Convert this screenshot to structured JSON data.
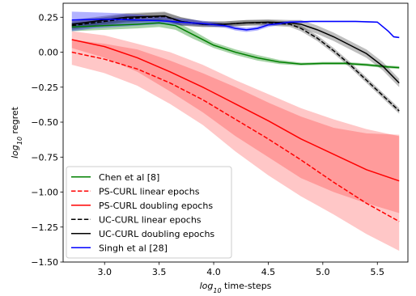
{
  "chart_data": {
    "type": "line",
    "xlabel_base": "log",
    "xlabel_sub": "10",
    "xlabel_rest": " time-steps",
    "ylabel_base": "log",
    "ylabel_sub": "10",
    "ylabel_rest": " regret",
    "xlim": [
      2.62,
      5.78
    ],
    "ylim": [
      -1.5,
      0.35
    ],
    "xticks": [
      3.0,
      3.5,
      4.0,
      4.5,
      5.0,
      5.5
    ],
    "xtick_labels": [
      "3.0",
      "3.5",
      "4.0",
      "4.5",
      "5.0",
      "5.5"
    ],
    "yticks": [
      0.25,
      0.0,
      -0.25,
      -0.5,
      -0.75,
      -1.0,
      -1.25,
      -1.5
    ],
    "ytick_labels": [
      "0.25",
      "0.00",
      "−0.25",
      "−0.50",
      "−0.75",
      "−1.00",
      "−1.25",
      "−1.50"
    ],
    "grid": false,
    "legend_position": "lower-left",
    "series": [
      {
        "name": "Chen et al [8]",
        "color": "#008000",
        "dash": "solid",
        "band_opacity": 0.35,
        "x": [
          2.7,
          3.0,
          3.3,
          3.5,
          3.65,
          3.8,
          4.0,
          4.2,
          4.4,
          4.6,
          4.8,
          5.0,
          5.2,
          5.4,
          5.6,
          5.7
        ],
        "y": [
          0.18,
          0.19,
          0.2,
          0.21,
          0.19,
          0.13,
          0.05,
          0.0,
          -0.04,
          -0.07,
          -0.085,
          -0.08,
          -0.08,
          -0.09,
          -0.105,
          -0.11
        ],
        "lower": [
          0.15,
          0.16,
          0.17,
          0.18,
          0.16,
          0.1,
          0.03,
          -0.02,
          -0.06,
          -0.085,
          -0.095,
          -0.09,
          -0.09,
          -0.1,
          -0.115,
          -0.12
        ],
        "upper": [
          0.21,
          0.22,
          0.23,
          0.24,
          0.22,
          0.16,
          0.07,
          0.02,
          -0.02,
          -0.055,
          -0.075,
          -0.07,
          -0.07,
          -0.08,
          -0.095,
          -0.1
        ]
      },
      {
        "name": "PS-CURL linear epochs",
        "color": "#ff0000",
        "dash": "dashed",
        "band_opacity": 0.22,
        "x": [
          2.7,
          3.0,
          3.3,
          3.6,
          3.9,
          4.2,
          4.5,
          4.8,
          5.1,
          5.4,
          5.7
        ],
        "y": [
          0.0,
          -0.05,
          -0.12,
          -0.22,
          -0.34,
          -0.48,
          -0.62,
          -0.77,
          -0.93,
          -1.08,
          -1.21
        ],
        "lower": [
          -0.09,
          -0.15,
          -0.24,
          -0.37,
          -0.52,
          -0.71,
          -0.88,
          -1.03,
          -1.16,
          -1.3,
          -1.42
        ],
        "upper": [
          0.09,
          0.06,
          0.02,
          -0.06,
          -0.15,
          -0.25,
          -0.36,
          -0.46,
          -0.54,
          -0.58,
          -0.59
        ]
      },
      {
        "name": "PS-CURL doubling epochs",
        "color": "#ff0000",
        "dash": "solid",
        "band_opacity": 0.22,
        "x": [
          2.7,
          3.0,
          3.3,
          3.6,
          3.9,
          4.2,
          4.5,
          4.8,
          5.1,
          5.4,
          5.7
        ],
        "y": [
          0.09,
          0.04,
          -0.04,
          -0.14,
          -0.25,
          -0.37,
          -0.49,
          -0.62,
          -0.73,
          -0.84,
          -0.92
        ],
        "lower": [
          0.03,
          -0.04,
          -0.14,
          -0.28,
          -0.43,
          -0.6,
          -0.75,
          -0.9,
          -1.0,
          -1.08,
          -1.15
        ],
        "upper": [
          0.15,
          0.12,
          0.06,
          0.0,
          -0.09,
          -0.2,
          -0.3,
          -0.4,
          -0.48,
          -0.55,
          -0.6
        ]
      },
      {
        "name": "UC-CURL linear epochs",
        "color": "#000000",
        "dash": "dashed",
        "band_opacity": 0.25,
        "x": [
          2.7,
          3.0,
          3.2,
          3.4,
          3.55,
          3.7,
          3.9,
          4.1,
          4.3,
          4.5,
          4.7,
          4.8,
          4.95,
          5.1,
          5.25,
          5.4,
          5.55,
          5.7
        ],
        "y": [
          0.19,
          0.22,
          0.24,
          0.25,
          0.255,
          0.22,
          0.2,
          0.2,
          0.21,
          0.21,
          0.2,
          0.17,
          0.1,
          0.01,
          -0.09,
          -0.2,
          -0.31,
          -0.42
        ],
        "lower": [
          0.16,
          0.19,
          0.21,
          0.22,
          0.225,
          0.19,
          0.18,
          0.18,
          0.19,
          0.19,
          0.18,
          0.15,
          0.08,
          -0.01,
          -0.11,
          -0.22,
          -0.33,
          -0.44
        ],
        "upper": [
          0.22,
          0.25,
          0.27,
          0.28,
          0.285,
          0.25,
          0.22,
          0.22,
          0.23,
          0.23,
          0.22,
          0.19,
          0.12,
          0.03,
          -0.07,
          -0.18,
          -0.29,
          -0.4
        ]
      },
      {
        "name": "UC-CURL doubling epochs",
        "color": "#000000",
        "dash": "solid",
        "band_opacity": 0.25,
        "x": [
          2.7,
          3.0,
          3.2,
          3.4,
          3.55,
          3.7,
          3.9,
          4.1,
          4.3,
          4.5,
          4.7,
          4.8,
          4.95,
          5.1,
          5.25,
          5.4,
          5.55,
          5.7
        ],
        "y": [
          0.2,
          0.23,
          0.25,
          0.255,
          0.26,
          0.22,
          0.2,
          0.2,
          0.21,
          0.215,
          0.21,
          0.2,
          0.16,
          0.11,
          0.05,
          -0.01,
          -0.1,
          -0.22
        ],
        "lower": [
          0.17,
          0.2,
          0.22,
          0.225,
          0.23,
          0.19,
          0.18,
          0.18,
          0.19,
          0.195,
          0.19,
          0.17,
          0.13,
          0.08,
          0.02,
          -0.04,
          -0.13,
          -0.25
        ],
        "upper": [
          0.23,
          0.26,
          0.28,
          0.285,
          0.29,
          0.25,
          0.22,
          0.22,
          0.23,
          0.235,
          0.23,
          0.23,
          0.19,
          0.14,
          0.08,
          0.02,
          -0.07,
          -0.19
        ]
      },
      {
        "name": "Singh et al [28]",
        "color": "#0000ff",
        "dash": "solid",
        "band_opacity": 0.3,
        "x": [
          2.7,
          2.9,
          3.1,
          3.3,
          3.5,
          3.7,
          3.9,
          4.1,
          4.2,
          4.3,
          4.4,
          4.5,
          4.7,
          4.9,
          5.1,
          5.3,
          5.5,
          5.6,
          5.65,
          5.7
        ],
        "y": [
          0.23,
          0.235,
          0.235,
          0.23,
          0.225,
          0.215,
          0.205,
          0.19,
          0.17,
          0.16,
          0.17,
          0.195,
          0.215,
          0.22,
          0.22,
          0.22,
          0.215,
          0.15,
          0.11,
          0.105
        ],
        "lower": [
          0.15,
          0.17,
          0.18,
          0.19,
          0.2,
          0.195,
          0.19,
          0.175,
          0.155,
          0.145,
          0.155,
          0.18,
          0.205,
          0.215,
          0.215,
          0.215,
          0.21,
          0.145,
          0.105,
          0.1
        ],
        "upper": [
          0.29,
          0.285,
          0.28,
          0.27,
          0.255,
          0.24,
          0.225,
          0.205,
          0.185,
          0.175,
          0.185,
          0.21,
          0.225,
          0.225,
          0.225,
          0.225,
          0.22,
          0.155,
          0.115,
          0.11
        ]
      }
    ]
  }
}
